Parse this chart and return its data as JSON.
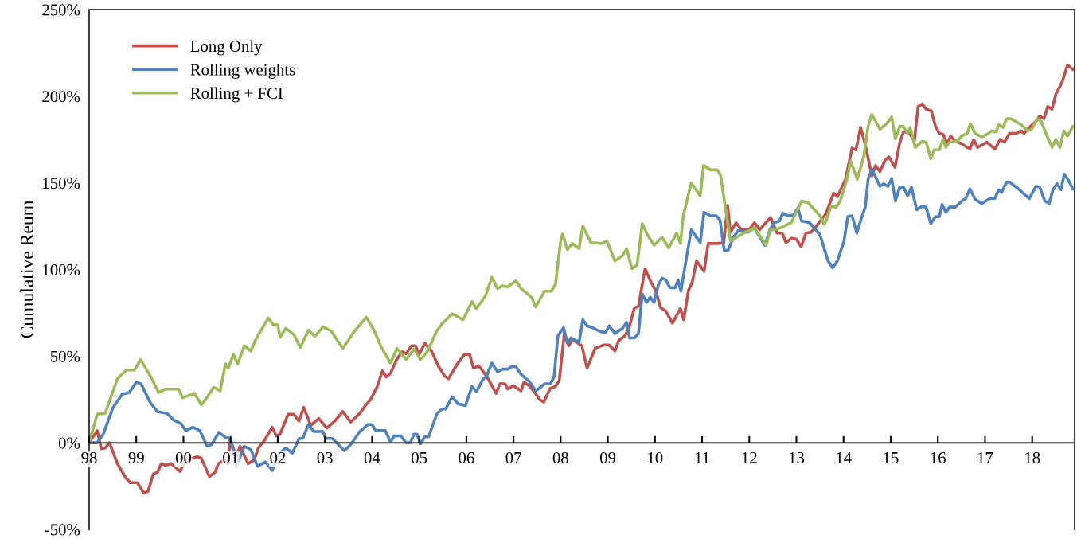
{
  "chart_data": {
    "type": "line",
    "ylabel": "Cumulative Reurn",
    "xlim": [
      1998,
      2018.9
    ],
    "xticks": [
      {
        "value": 1998,
        "label": "98"
      },
      {
        "value": 1999,
        "label": "99"
      },
      {
        "value": 2000,
        "label": "00"
      },
      {
        "value": 2001,
        "label": "01"
      },
      {
        "value": 2002,
        "label": "02"
      },
      {
        "value": 2003,
        "label": "03"
      },
      {
        "value": 2004,
        "label": "04"
      },
      {
        "value": 2005,
        "label": "05"
      },
      {
        "value": 2006,
        "label": "06"
      },
      {
        "value": 2007,
        "label": "07"
      },
      {
        "value": 2008,
        "label": "08"
      },
      {
        "value": 2009,
        "label": "09"
      },
      {
        "value": 2010,
        "label": "10"
      },
      {
        "value": 2011,
        "label": "11"
      },
      {
        "value": 2012,
        "label": "12"
      },
      {
        "value": 2013,
        "label": "13"
      },
      {
        "value": 2014,
        "label": "14"
      },
      {
        "value": 2015,
        "label": "15"
      },
      {
        "value": 2016,
        "label": "16"
      },
      {
        "value": 2017,
        "label": "17"
      },
      {
        "value": 2018,
        "label": "18"
      }
    ],
    "ylim": [
      -50,
      250
    ],
    "yticks": [
      {
        "value": -50,
        "label": "-50%"
      },
      {
        "value": 0,
        "label": "0%"
      },
      {
        "value": 50,
        "label": "50%"
      },
      {
        "value": 100,
        "label": "100%"
      },
      {
        "value": 150,
        "label": "150%"
      },
      {
        "value": 200,
        "label": "200%"
      },
      {
        "value": 250,
        "label": "250%"
      }
    ],
    "grid": false,
    "legend": "top left",
    "marker": "none",
    "line_style": "solid",
    "series": [
      {
        "name": "Long Only",
        "color": "#c0504d",
        "x": [
          1998,
          1998.17,
          1998.26,
          1998.34,
          1998.43,
          1998.6,
          1998.77,
          1998.87,
          1999.02,
          1999.16,
          1999.25,
          1999.36,
          1999.45,
          1999.53,
          1999.62,
          1999.74,
          1999.93,
          2000.04,
          2000.3,
          2000.38,
          2000.55,
          2000.67,
          2000.74,
          2000.86,
          2000.95,
          2000.99,
          2001.12,
          2001.2,
          2001.37,
          2001.5,
          2001.59,
          2001.71,
          2001.88,
          2001.97,
          2002.05,
          2002.22,
          2002.34,
          2002.45,
          2002.55,
          2002.7,
          2002.87,
          2003.04,
          2003.21,
          2003.38,
          2003.55,
          2003.74,
          2003.86,
          2003.97,
          2004.11,
          2004.22,
          2004.3,
          2004.39,
          2004.53,
          2004.64,
          2004.72,
          2004.84,
          2004.92,
          2005.0,
          2005.12,
          2005.26,
          2005.4,
          2005.54,
          2005.62,
          2005.82,
          2005.96,
          2006.07,
          2006.15,
          2006.26,
          2006.43,
          2006.63,
          2006.71,
          2006.82,
          2006.88,
          2006.99,
          2007.16,
          2007.22,
          2007.33,
          2007.44,
          2007.55,
          2007.64,
          2007.78,
          2007.89,
          2007.97,
          2008.08,
          2008.17,
          2008.25,
          2008.45,
          2008.56,
          2008.73,
          2008.92,
          2009.03,
          2009.15,
          2009.23,
          2009.37,
          2009.45,
          2009.56,
          2009.65,
          2009.79,
          2009.9,
          2010.01,
          2010.12,
          2010.23,
          2010.37,
          2010.54,
          2010.61,
          2010.71,
          2010.79,
          2010.88,
          2011.04,
          2011.13,
          2011.32,
          2011.46,
          2011.54,
          2011.6,
          2011.72,
          2011.83,
          2012.0,
          2012.11,
          2012.22,
          2012.45,
          2012.59,
          2012.7,
          2012.78,
          2012.89,
          2013.0,
          2013.1,
          2013.2,
          2013.31,
          2013.42,
          2013.62,
          2013.79,
          2013.87,
          2014.04,
          2014.18,
          2014.26,
          2014.36,
          2014.46,
          2014.6,
          2014.68,
          2014.77,
          2014.88,
          2014.96,
          2015.09,
          2015.19,
          2015.27,
          2015.39,
          2015.5,
          2015.58,
          2015.67,
          2015.75,
          2015.86,
          2015.95,
          2016.03,
          2016.11,
          2016.2,
          2016.27,
          2016.37,
          2016.51,
          2016.68,
          2016.76,
          2016.84,
          2017.04,
          2017.21,
          2017.32,
          2017.41,
          2017.52,
          2017.66,
          2017.77,
          2017.83,
          2017.94,
          2018.08,
          2018.16,
          2018.25,
          2018.33,
          2018.42,
          2018.5,
          2018.64,
          2018.75,
          2018.86
        ],
        "values": [
          0,
          7,
          -3.5,
          -3,
          0,
          -12,
          -20,
          -23,
          -23,
          -29,
          -28,
          -18,
          -17,
          -12,
          -13,
          -12,
          -16.5,
          -10,
          -8,
          -9,
          -19.5,
          -17,
          -12,
          -10,
          -12,
          2,
          -8,
          -2,
          -12,
          -10,
          -3,
          1,
          9,
          4,
          5,
          16.5,
          16.5,
          12.5,
          20.5,
          10,
          14,
          8.5,
          12.5,
          18,
          12,
          17,
          21.5,
          25,
          32.5,
          41.5,
          38,
          40,
          48.5,
          52.5,
          51.5,
          56,
          56,
          51,
          57.5,
          53,
          44.5,
          38.5,
          37,
          46,
          51,
          51,
          43,
          44.5,
          38.5,
          28.5,
          34,
          34,
          31,
          33,
          30,
          35,
          33,
          29.5,
          25,
          23.5,
          31.5,
          32.5,
          36,
          63.5,
          56,
          59.5,
          56,
          43,
          54.5,
          56.5,
          56.5,
          53,
          59,
          62,
          66.5,
          77.5,
          79,
          100.5,
          93.5,
          88,
          78,
          76,
          69,
          77.5,
          71,
          88,
          92.5,
          105,
          99,
          115,
          115,
          115.5,
          137,
          121.5,
          127,
          123,
          123,
          127,
          123,
          130,
          121,
          121,
          115.5,
          118,
          117.5,
          113,
          121,
          121.5,
          125,
          132,
          144,
          142,
          152,
          170,
          169,
          182,
          172,
          154,
          160,
          156.5,
          163,
          165,
          159,
          173,
          179.5,
          179,
          174,
          194,
          195.5,
          192.5,
          191.5,
          182.5,
          178.5,
          178,
          172.5,
          177,
          174,
          172.5,
          169.5,
          175,
          170.5,
          173.5,
          169.5,
          175,
          173.5,
          178.5,
          178.5,
          180,
          178.5,
          182,
          185.5,
          188.5,
          187,
          194,
          192.5,
          201,
          208.5,
          218,
          215.5
        ]
      },
      {
        "name": "Rolling weights",
        "color": "#4f81bd",
        "x": [
          1998,
          1998.17,
          1998.3,
          1998.5,
          1998.7,
          1998.85,
          1999.0,
          1999.1,
          1999.3,
          1999.45,
          1999.65,
          1999.8,
          1999.95,
          2000.05,
          2000.2,
          2000.35,
          2000.5,
          2000.6,
          2000.75,
          2000.9,
          2001.0,
          2001.12,
          2001.29,
          2001.43,
          2001.57,
          2001.74,
          2001.88,
          2002.02,
          2002.17,
          2002.31,
          2002.45,
          2002.53,
          2002.65,
          2002.76,
          2002.96,
          2003.02,
          2003.16,
          2003.41,
          2003.55,
          2003.74,
          2003.91,
          2004.0,
          2004.08,
          2004.28,
          2004.39,
          2004.47,
          2004.61,
          2004.72,
          2004.81,
          2004.89,
          2004.95,
          2005.03,
          2005.12,
          2005.2,
          2005.37,
          2005.48,
          2005.56,
          2005.7,
          2005.82,
          2005.98,
          2006.12,
          2006.21,
          2006.35,
          2006.43,
          2006.54,
          2006.66,
          2006.77,
          2006.88,
          2006.96,
          2007.05,
          2007.16,
          2007.33,
          2007.47,
          2007.55,
          2007.66,
          2007.78,
          2007.86,
          2007.94,
          2008.06,
          2008.14,
          2008.22,
          2008.39,
          2008.47,
          2008.56,
          2008.67,
          2008.81,
          2008.95,
          2009.03,
          2009.15,
          2009.31,
          2009.4,
          2009.46,
          2009.56,
          2009.65,
          2009.73,
          2009.82,
          2009.9,
          2009.98,
          2010.07,
          2010.15,
          2010.23,
          2010.32,
          2010.43,
          2010.49,
          2010.55,
          2010.65,
          2010.77,
          2010.96,
          2011.04,
          2011.18,
          2011.3,
          2011.38,
          2011.47,
          2011.55,
          2011.66,
          2011.77,
          2011.97,
          2012.11,
          2012.33,
          2012.44,
          2012.53,
          2012.64,
          2012.71,
          2012.83,
          2012.94,
          2013.03,
          2013.11,
          2013.28,
          2013.5,
          2013.67,
          2013.77,
          2013.87,
          2014.01,
          2014.09,
          2014.18,
          2014.28,
          2014.37,
          2014.46,
          2014.52,
          2014.6,
          2014.77,
          2014.85,
          2014.94,
          2015.02,
          2015.1,
          2015.19,
          2015.27,
          2015.36,
          2015.44,
          2015.55,
          2015.67,
          2015.75,
          2015.85,
          2015.95,
          2016.03,
          2016.09,
          2016.17,
          2016.25,
          2016.37,
          2016.51,
          2016.59,
          2016.68,
          2016.79,
          2016.93,
          2017.1,
          2017.21,
          2017.29,
          2017.35,
          2017.46,
          2017.52,
          2017.71,
          2017.83,
          2017.94,
          2018.08,
          2018.16,
          2018.27,
          2018.36,
          2018.44,
          2018.53,
          2018.61,
          2018.68,
          2018.78,
          2018.86
        ],
        "values": [
          0,
          0,
          5,
          20,
          28,
          29,
          35,
          34,
          23,
          18,
          17,
          13,
          11,
          7,
          9,
          7,
          -2,
          -1,
          6,
          3,
          2.5,
          -13.5,
          -2,
          -4,
          -13.5,
          -11,
          -16,
          -6.5,
          -3,
          -6,
          2.5,
          2.5,
          10.5,
          6.5,
          6.5,
          2.5,
          2.5,
          -4.5,
          -1,
          6.5,
          10.5,
          10.5,
          7,
          7,
          0.5,
          4,
          4,
          0,
          0,
          5,
          5,
          -0.5,
          3.5,
          3.5,
          16.5,
          19.5,
          19.5,
          26.5,
          22.5,
          21.5,
          32.5,
          29.5,
          36.5,
          38.5,
          46,
          41,
          42.5,
          42.5,
          44,
          44,
          39.5,
          35.5,
          30,
          31.5,
          34,
          34,
          38,
          61.5,
          66.5,
          57.5,
          60.5,
          58,
          71,
          67.5,
          66.5,
          64.5,
          63.5,
          67.5,
          63,
          66,
          69.5,
          60.5,
          60.5,
          63,
          86,
          81,
          84,
          81,
          91,
          95,
          94,
          89.5,
          89.5,
          94,
          87.5,
          104,
          123,
          115.5,
          133,
          131,
          131,
          128.5,
          111,
          111,
          118.5,
          122.5,
          121.5,
          124,
          114,
          123,
          127,
          128,
          132.5,
          131,
          131.5,
          135.5,
          128,
          127,
          120,
          105,
          101,
          105,
          116.5,
          130.5,
          131,
          121,
          129,
          136,
          152,
          158,
          148,
          149.5,
          148,
          152.5,
          139.5,
          147.5,
          147.5,
          142.5,
          147.5,
          134.5,
          136.5,
          136,
          126.5,
          130.5,
          130.5,
          137.5,
          133,
          136,
          136,
          139.5,
          141,
          146.5,
          140.5,
          138,
          141,
          141,
          146,
          144.5,
          150.5,
          150.5,
          146.5,
          143.5,
          141,
          148,
          147.5,
          139.5,
          138,
          146,
          149.5,
          146,
          155,
          151,
          146.5
        ]
      },
      {
        "name": "Rolling + FCI",
        "color": "#9bbb59",
        "x": [
          1998,
          1998.17,
          1998.34,
          1998.6,
          1998.79,
          1998.96,
          1999.09,
          1999.33,
          1999.47,
          1999.62,
          1999.9,
          1999.98,
          2000.23,
          2000.38,
          2000.47,
          2000.64,
          2000.78,
          2000.89,
          2000.95,
          2001.06,
          2001.15,
          2001.29,
          2001.43,
          2001.54,
          2001.8,
          2001.91,
          2002.0,
          2002.05,
          2002.17,
          2002.34,
          2002.48,
          2002.65,
          2002.79,
          2002.96,
          2003.13,
          2003.38,
          2003.63,
          2003.88,
          2004.05,
          2004.19,
          2004.39,
          2004.53,
          2004.72,
          2004.89,
          2005.03,
          2005.17,
          2005.37,
          2005.48,
          2005.7,
          2005.93,
          2006.12,
          2006.21,
          2006.4,
          2006.54,
          2006.66,
          2006.77,
          2006.88,
          2007.05,
          2007.16,
          2007.38,
          2007.47,
          2007.66,
          2007.8,
          2007.89,
          2008.0,
          2008.04,
          2008.14,
          2008.25,
          2008.39,
          2008.47,
          2008.64,
          2008.87,
          2008.98,
          2009.15,
          2009.31,
          2009.4,
          2009.51,
          2009.62,
          2009.73,
          2009.84,
          2009.98,
          2010.15,
          2010.29,
          2010.46,
          2010.54,
          2010.6,
          2010.77,
          2010.96,
          2011.03,
          2011.18,
          2011.32,
          2011.39,
          2011.6,
          2011.88,
          2012.11,
          2012.36,
          2012.44,
          2012.66,
          2012.89,
          2013.11,
          2013.25,
          2013.5,
          2013.59,
          2013.65,
          2013.73,
          2013.84,
          2013.93,
          2014.07,
          2014.15,
          2014.29,
          2014.43,
          2014.52,
          2014.6,
          2014.77,
          2014.91,
          2015.02,
          2015.1,
          2015.19,
          2015.27,
          2015.36,
          2015.41,
          2015.52,
          2015.67,
          2015.75,
          2015.85,
          2015.92,
          2016.03,
          2016.11,
          2016.17,
          2016.25,
          2016.4,
          2016.51,
          2016.62,
          2016.69,
          2016.79,
          2016.93,
          2017.04,
          2017.15,
          2017.24,
          2017.29,
          2017.38,
          2017.46,
          2017.55,
          2017.77,
          2017.91,
          2017.99,
          2018.11,
          2018.19,
          2018.3,
          2018.42,
          2018.5,
          2018.59,
          2018.67,
          2018.75,
          2018.86
        ],
        "values": [
          0,
          16.5,
          17,
          37,
          42,
          42,
          48,
          37,
          29,
          31,
          31,
          26,
          28.5,
          22,
          25,
          32,
          30,
          45.5,
          43,
          51,
          45.5,
          56,
          53,
          60,
          72,
          68,
          68,
          61,
          66,
          62.5,
          55,
          65,
          61.5,
          67,
          64.5,
          54.5,
          64.5,
          72.5,
          64.5,
          55.5,
          46,
          54.5,
          48,
          54,
          48,
          52.5,
          64.5,
          68.5,
          74.5,
          71,
          81.5,
          77.5,
          84.5,
          95.5,
          89,
          90.5,
          90,
          93.5,
          89,
          84,
          78.5,
          87.5,
          87.5,
          91.5,
          116.5,
          120.5,
          111.5,
          115,
          112,
          125,
          115.5,
          115,
          116.5,
          105,
          108,
          112,
          100.5,
          102.5,
          126.5,
          120,
          114,
          118.5,
          112.5,
          121,
          115,
          131,
          150,
          142.5,
          160,
          157.5,
          157.5,
          154.5,
          116.5,
          121,
          124,
          114,
          122.5,
          124,
          127,
          139.5,
          138.5,
          131,
          126,
          129.5,
          136.5,
          136,
          139.5,
          152,
          162.5,
          152,
          165.5,
          182.5,
          189.5,
          181,
          184,
          188,
          175.5,
          182.5,
          182.5,
          178.5,
          182,
          170.5,
          174,
          173.5,
          164,
          169,
          169,
          175,
          170.5,
          173.5,
          174,
          177,
          178.5,
          184,
          178.5,
          176.5,
          178,
          180,
          179.5,
          183.5,
          182,
          187,
          187,
          183.5,
          180,
          181,
          187,
          185.5,
          178,
          170.5,
          175,
          170.5,
          180,
          177,
          182.5
        ]
      }
    ]
  }
}
